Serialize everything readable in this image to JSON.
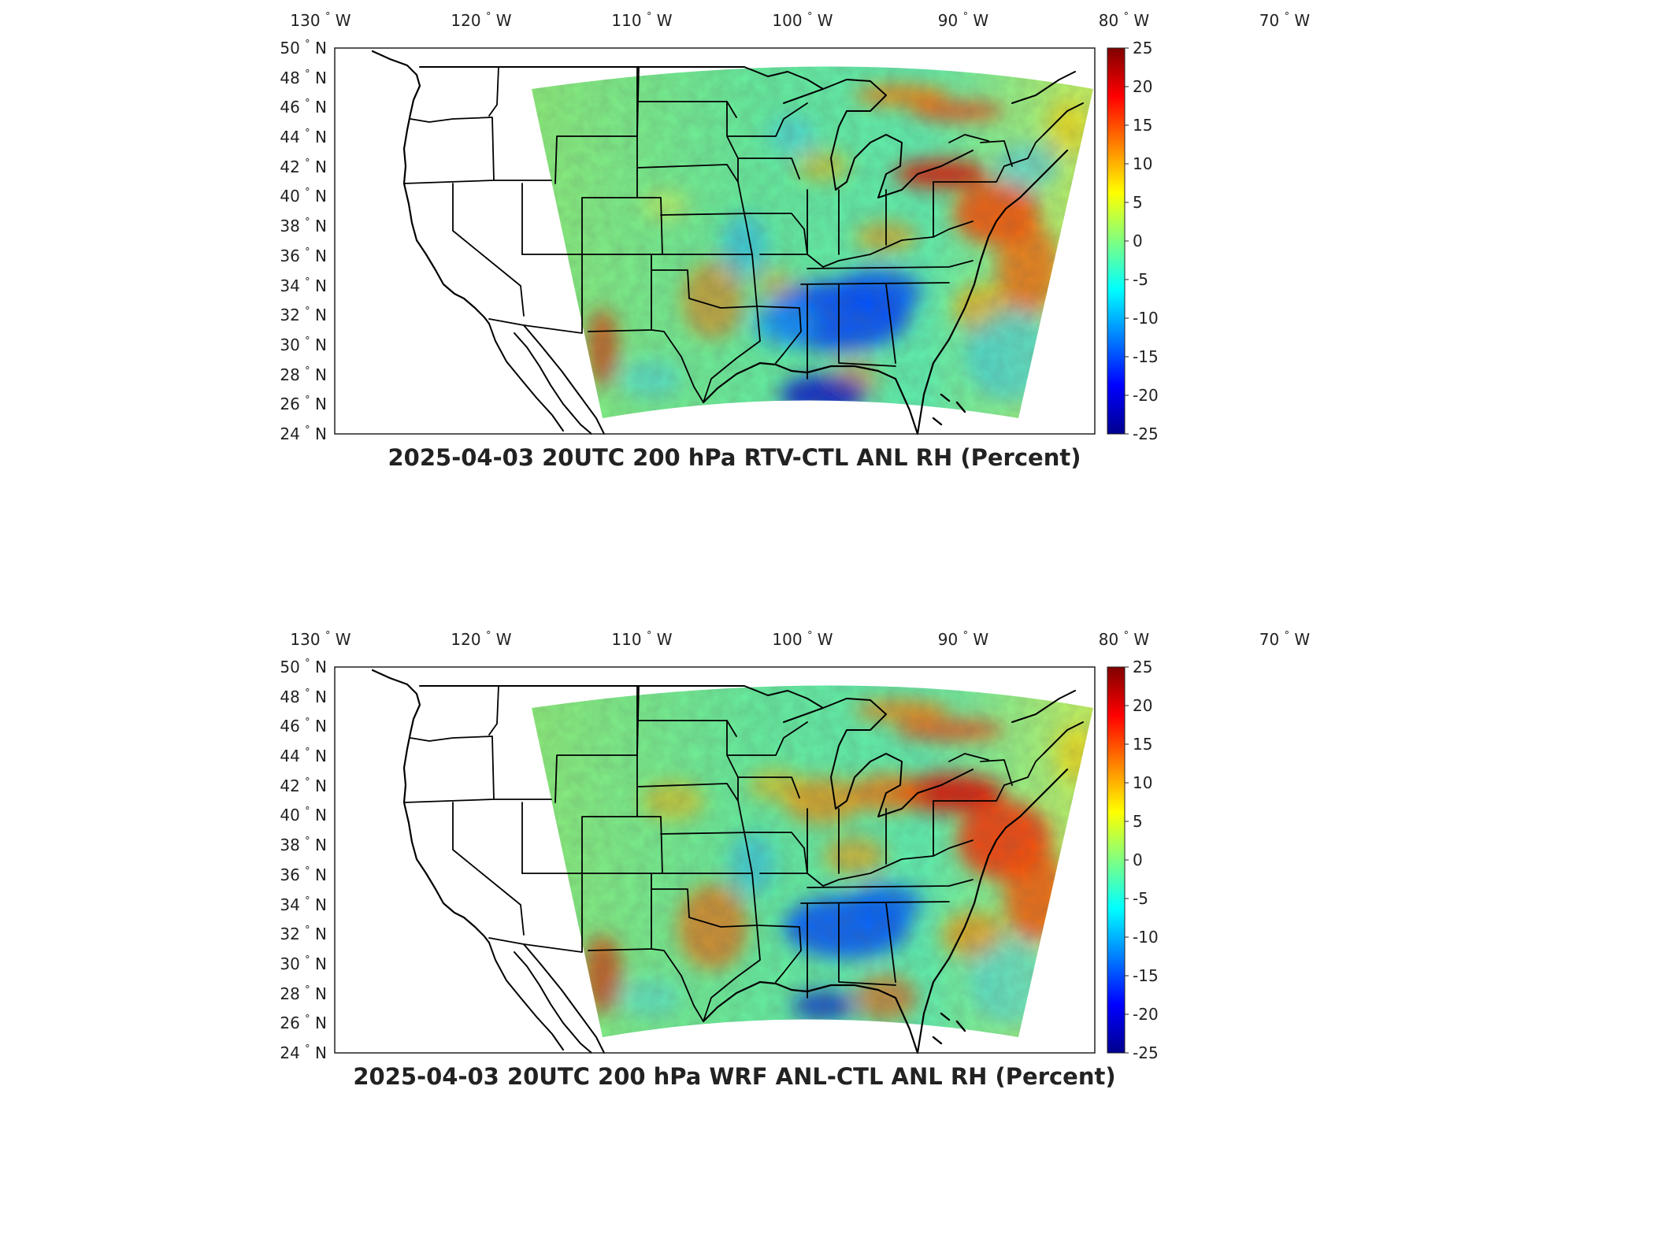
{
  "colormap": {
    "name": "jet",
    "stops": [
      "#00008f",
      "#0000ff",
      "#0080ff",
      "#00ffff",
      "#80ff80",
      "#ffff00",
      "#ff8000",
      "#ff0000",
      "#800000"
    ]
  },
  "panels": [
    {
      "title": "2025-04-03 20UTC 200 hPa RTV-CTL ANL RH (Percent)",
      "lon_labels": [
        "130",
        "120",
        "110",
        "100",
        "90",
        "80",
        "70"
      ],
      "lon_hemisphere": "W",
      "lat_labels": [
        "50",
        "48",
        "46",
        "44",
        "42",
        "40",
        "38",
        "36",
        "34",
        "32",
        "30",
        "28",
        "26",
        "24"
      ],
      "lat_hemisphere": "N",
      "degree_symbol": "°",
      "colorbar": {
        "min": -25,
        "max": 25,
        "ticks": [
          "25",
          "20",
          "15",
          "10",
          "5",
          "0",
          "-5",
          "-10",
          "-15",
          "-20",
          "-25"
        ]
      }
    },
    {
      "title": "2025-04-03 20UTC 200 hPa WRF ANL-CTL ANL RH (Percent)",
      "lon_labels": [
        "130",
        "120",
        "110",
        "100",
        "90",
        "80",
        "70"
      ],
      "lon_hemisphere": "W",
      "lat_labels": [
        "50",
        "48",
        "46",
        "44",
        "42",
        "40",
        "38",
        "36",
        "34",
        "32",
        "30",
        "28",
        "26",
        "24"
      ],
      "lat_hemisphere": "N",
      "degree_symbol": "°",
      "colorbar": {
        "min": -25,
        "max": 25,
        "ticks": [
          "25",
          "20",
          "15",
          "10",
          "5",
          "0",
          "-5",
          "-10",
          "-15",
          "-20",
          "-25"
        ]
      }
    }
  ]
}
